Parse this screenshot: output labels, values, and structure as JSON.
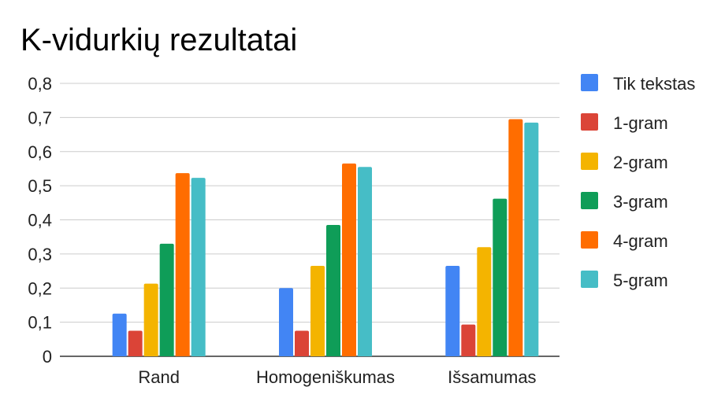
{
  "chart_data": {
    "type": "bar",
    "title": "K-vidurkių rezultatai",
    "xlabel": "",
    "ylabel": "",
    "categories": [
      "Rand",
      "Homogeniškumas",
      "Išsamumas"
    ],
    "ylim": [
      0,
      0.8
    ],
    "yticks": [
      "0",
      "0,1",
      "0,2",
      "0,3",
      "0,4",
      "0,5",
      "0,6",
      "0,7",
      "0,8"
    ],
    "grid": true,
    "legend_position": "right",
    "series": [
      {
        "name": "Tik tekstas",
        "color": "#4285F4",
        "values": [
          0.125,
          0.2,
          0.265
        ]
      },
      {
        "name": "1-gram",
        "color": "#DB4437",
        "values": [
          0.075,
          0.075,
          0.093
        ]
      },
      {
        "name": "2-gram",
        "color": "#F4B400",
        "values": [
          0.213,
          0.265,
          0.32
        ]
      },
      {
        "name": "3-gram",
        "color": "#0F9D58",
        "values": [
          0.33,
          0.385,
          0.462
        ]
      },
      {
        "name": "4-gram",
        "color": "#FF6D00",
        "values": [
          0.537,
          0.565,
          0.695
        ]
      },
      {
        "name": "5-gram",
        "color": "#46BDC6",
        "values": [
          0.523,
          0.555,
          0.685
        ]
      }
    ]
  }
}
